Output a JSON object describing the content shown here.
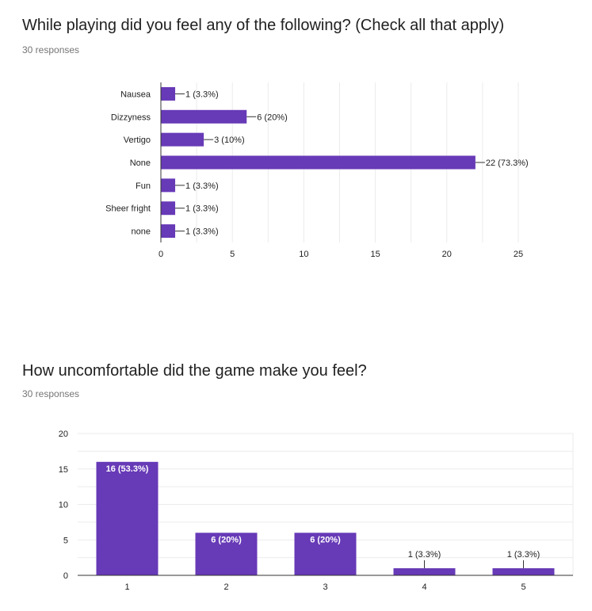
{
  "questions": [
    {
      "title": "While playing did you feel any of the following? (Check all that apply)",
      "responses": "30 responses"
    },
    {
      "title": "How uncomfortable did the game make you feel?",
      "responses": "30 responses"
    }
  ],
  "colors": {
    "bar": "#673ab7",
    "grid": "#ebebeb",
    "axis": "#333333",
    "text": "#212121",
    "muted": "#757575"
  },
  "chart_data": [
    {
      "type": "bar",
      "orientation": "horizontal",
      "categories": [
        "Nausea",
        "Dizzyness",
        "Vertigo",
        "None",
        "Fun",
        "Sheer fright",
        "none"
      ],
      "values": [
        1,
        6,
        3,
        22,
        1,
        1,
        1
      ],
      "data_labels": [
        "1 (3.3%)",
        "6 (20%)",
        "3 (10%)",
        "22 (73.3%)",
        "1 (3.3%)",
        "1 (3.3%)",
        "1 (3.3%)"
      ],
      "xlim": [
        0,
        25
      ],
      "ticks": [
        0,
        5,
        10,
        15,
        20,
        25
      ],
      "grid": true
    },
    {
      "type": "bar",
      "orientation": "vertical",
      "categories": [
        "1",
        "2",
        "3",
        "4",
        "5"
      ],
      "values": [
        16,
        6,
        6,
        1,
        1
      ],
      "data_labels": [
        "16 (53.3%)",
        "6 (20%)",
        "6 (20%)",
        "1 (3.3%)",
        "1 (3.3%)"
      ],
      "ylim": [
        0,
        20
      ],
      "ticks": [
        0,
        5,
        10,
        15,
        20
      ],
      "grid": true
    }
  ]
}
